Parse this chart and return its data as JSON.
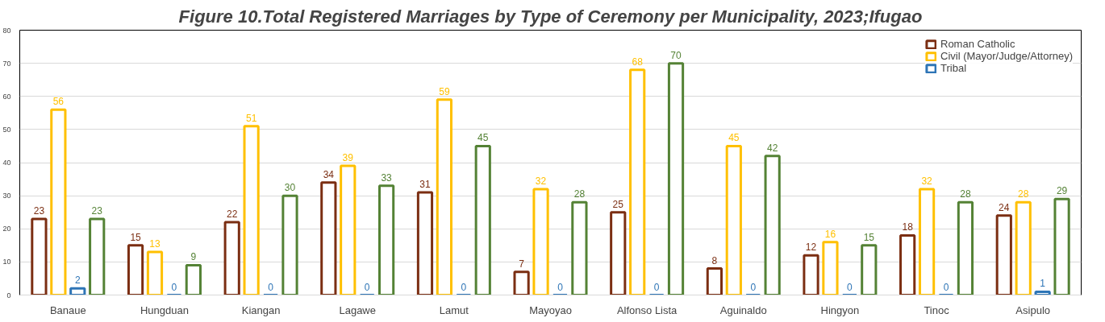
{
  "chart_data": {
    "type": "bar",
    "title": "Figure 10.Total Registered Marriages by Type of Ceremony per Municipality, 2023;Ifugao",
    "categories": [
      "Banaue",
      "Hungduan",
      "Kiangan",
      "Lagawe",
      "Lamut",
      "Mayoyao",
      "Alfonso Lista",
      "Aguinaldo",
      "Hingyon",
      "Tinoc",
      "Asipulo"
    ],
    "series": [
      {
        "name": "Roman Catholic",
        "color": "#7b2e12",
        "values": [
          23,
          15,
          22,
          34,
          31,
          7,
          25,
          8,
          12,
          18,
          24
        ]
      },
      {
        "name": "Civil (Mayor/Judge/Attorney)",
        "color": "#ffc000",
        "values": [
          56,
          13,
          51,
          39,
          59,
          32,
          68,
          45,
          16,
          32,
          28
        ]
      },
      {
        "name": "Tribal",
        "color": "#2e75b6",
        "values": [
          2,
          0,
          0,
          0,
          0,
          0,
          0,
          0,
          0,
          0,
          1
        ]
      },
      {
        "color": "#548235",
        "values": [
          23,
          9,
          30,
          33,
          45,
          28,
          70,
          42,
          15,
          28,
          29
        ]
      }
    ],
    "ylim": [
      0,
      80
    ],
    "yticks": [
      0,
      10,
      20,
      30,
      40,
      50,
      60,
      70,
      80
    ],
    "grid": "y",
    "legend": "top right",
    "data_labels": true
  }
}
